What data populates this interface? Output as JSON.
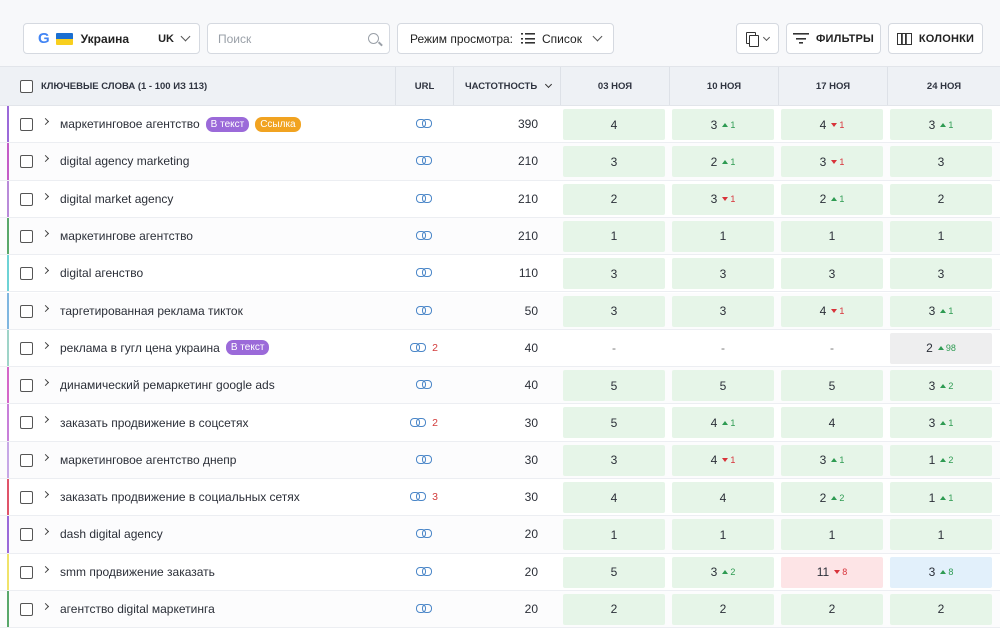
{
  "toolbar": {
    "region": "Украина",
    "lang": "UK",
    "search_placeholder": "Поиск",
    "view_label": "Режим просмотра:",
    "view_value": "Список",
    "filters_label": "ФИЛЬТРЫ",
    "columns_label": "КОЛОНКИ"
  },
  "table": {
    "header": {
      "keywords": "КЛЮЧЕВЫЕ СЛОВА (1 - 100 ИЗ 113)",
      "url": "URL",
      "frequency": "ЧАСТОТНОСТЬ",
      "dates": [
        "03 НОЯ",
        "10 НОЯ",
        "17 НОЯ",
        "24 НОЯ"
      ]
    },
    "rows": [
      {
        "keyword": "маркетинговое агентство",
        "badges": [
          {
            "text": "В текст",
            "color": "purple"
          },
          {
            "text": "Ссылка",
            "color": "orange"
          }
        ],
        "url_count": "",
        "freq": "390",
        "bar": "#9b6ad9",
        "positions": [
          {
            "v": "4",
            "c": "green"
          },
          {
            "v": "3",
            "d": "1",
            "dir": "up",
            "c": "green"
          },
          {
            "v": "4",
            "d": "1",
            "dir": "down",
            "c": "green"
          },
          {
            "v": "3",
            "d": "1",
            "dir": "up",
            "c": "green"
          }
        ]
      },
      {
        "keyword": "digital agency marketing",
        "badges": [],
        "url_count": "",
        "freq": "210",
        "bar": "#c45cc7",
        "positions": [
          {
            "v": "3",
            "c": "green"
          },
          {
            "v": "2",
            "d": "1",
            "dir": "up",
            "c": "green"
          },
          {
            "v": "3",
            "d": "1",
            "dir": "down",
            "c": "green"
          },
          {
            "v": "3",
            "c": "green"
          }
        ]
      },
      {
        "keyword": "digital market agency",
        "badges": [],
        "url_count": "",
        "freq": "210",
        "bar": "#b98bd9",
        "positions": [
          {
            "v": "2",
            "c": "green"
          },
          {
            "v": "3",
            "d": "1",
            "dir": "down",
            "c": "green"
          },
          {
            "v": "2",
            "d": "1",
            "dir": "up",
            "c": "green"
          },
          {
            "v": "2",
            "c": "green"
          }
        ]
      },
      {
        "keyword": "маркетингове агентство",
        "badges": [],
        "url_count": "",
        "freq": "210",
        "bar": "#5aa86b",
        "positions": [
          {
            "v": "1",
            "c": "green"
          },
          {
            "v": "1",
            "c": "green"
          },
          {
            "v": "1",
            "c": "green"
          },
          {
            "v": "1",
            "c": "green"
          }
        ]
      },
      {
        "keyword": "digital агенство",
        "badges": [],
        "url_count": "",
        "freq": "110",
        "bar": "#6ed3d6",
        "positions": [
          {
            "v": "3",
            "c": "green"
          },
          {
            "v": "3",
            "c": "green"
          },
          {
            "v": "3",
            "c": "green"
          },
          {
            "v": "3",
            "c": "green"
          }
        ]
      },
      {
        "keyword": "таргетированная реклама тикток",
        "badges": [],
        "url_count": "",
        "freq": "50",
        "bar": "#7fb6e0",
        "positions": [
          {
            "v": "3",
            "c": "green"
          },
          {
            "v": "3",
            "c": "green"
          },
          {
            "v": "4",
            "d": "1",
            "dir": "down",
            "c": "green"
          },
          {
            "v": "3",
            "d": "1",
            "dir": "up",
            "c": "green"
          }
        ]
      },
      {
        "keyword": "реклама в гугл цена украина",
        "badges": [
          {
            "text": "В текст",
            "color": "purple"
          }
        ],
        "url_count": "2",
        "freq": "40",
        "bar": "#9fd4c8",
        "positions": [
          {
            "v": "-",
            "c": "empty"
          },
          {
            "v": "-",
            "c": "empty"
          },
          {
            "v": "-",
            "c": "empty"
          },
          {
            "v": "2",
            "d": "98",
            "dir": "up",
            "c": "gray"
          }
        ]
      },
      {
        "keyword": "динамический ремаркетинг google ads",
        "badges": [],
        "url_count": "",
        "freq": "40",
        "bar": "#d466c8",
        "positions": [
          {
            "v": "5",
            "c": "green"
          },
          {
            "v": "5",
            "c": "green"
          },
          {
            "v": "5",
            "c": "green"
          },
          {
            "v": "3",
            "d": "2",
            "dir": "up",
            "c": "green"
          }
        ]
      },
      {
        "keyword": "заказать продвижение в соцсетях",
        "badges": [],
        "url_count": "2",
        "freq": "30",
        "bar": "#c87fd9",
        "positions": [
          {
            "v": "5",
            "c": "green"
          },
          {
            "v": "4",
            "d": "1",
            "dir": "up",
            "c": "green"
          },
          {
            "v": "4",
            "c": "green"
          },
          {
            "v": "3",
            "d": "1",
            "dir": "up",
            "c": "green"
          }
        ]
      },
      {
        "keyword": "маркетинговое агентство днепр",
        "badges": [],
        "url_count": "",
        "freq": "30",
        "bar": "#c7a8e6",
        "positions": [
          {
            "v": "3",
            "c": "green"
          },
          {
            "v": "4",
            "d": "1",
            "dir": "down",
            "c": "green"
          },
          {
            "v": "3",
            "d": "1",
            "dir": "up",
            "c": "green"
          },
          {
            "v": "1",
            "d": "2",
            "dir": "up",
            "c": "green"
          }
        ]
      },
      {
        "keyword": "заказать продвижение в социальных сетях",
        "badges": [],
        "url_count": "3",
        "freq": "30",
        "bar": "#e0546a",
        "positions": [
          {
            "v": "4",
            "c": "green"
          },
          {
            "v": "4",
            "c": "green"
          },
          {
            "v": "2",
            "d": "2",
            "dir": "up",
            "c": "green"
          },
          {
            "v": "1",
            "d": "1",
            "dir": "up",
            "c": "green"
          }
        ]
      },
      {
        "keyword": "dash digital agency",
        "badges": [],
        "url_count": "",
        "freq": "20",
        "bar": "#9b6ad9",
        "positions": [
          {
            "v": "1",
            "c": "green"
          },
          {
            "v": "1",
            "c": "green"
          },
          {
            "v": "1",
            "c": "green"
          },
          {
            "v": "1",
            "c": "green"
          }
        ]
      },
      {
        "keyword": "smm продвижение заказать",
        "badges": [],
        "url_count": "",
        "freq": "20",
        "bar": "#f0e36a",
        "positions": [
          {
            "v": "5",
            "c": "green"
          },
          {
            "v": "3",
            "d": "2",
            "dir": "up",
            "c": "green"
          },
          {
            "v": "11",
            "d": "8",
            "dir": "down",
            "c": "red"
          },
          {
            "v": "3",
            "d": "8",
            "dir": "up",
            "c": "blue"
          }
        ]
      },
      {
        "keyword": "агентство digital маркетинга",
        "badges": [],
        "url_count": "",
        "freq": "20",
        "bar": "#5aa86b",
        "positions": [
          {
            "v": "2",
            "c": "green"
          },
          {
            "v": "2",
            "c": "green"
          },
          {
            "v": "2",
            "c": "green"
          },
          {
            "v": "2",
            "c": "green"
          }
        ]
      }
    ]
  }
}
